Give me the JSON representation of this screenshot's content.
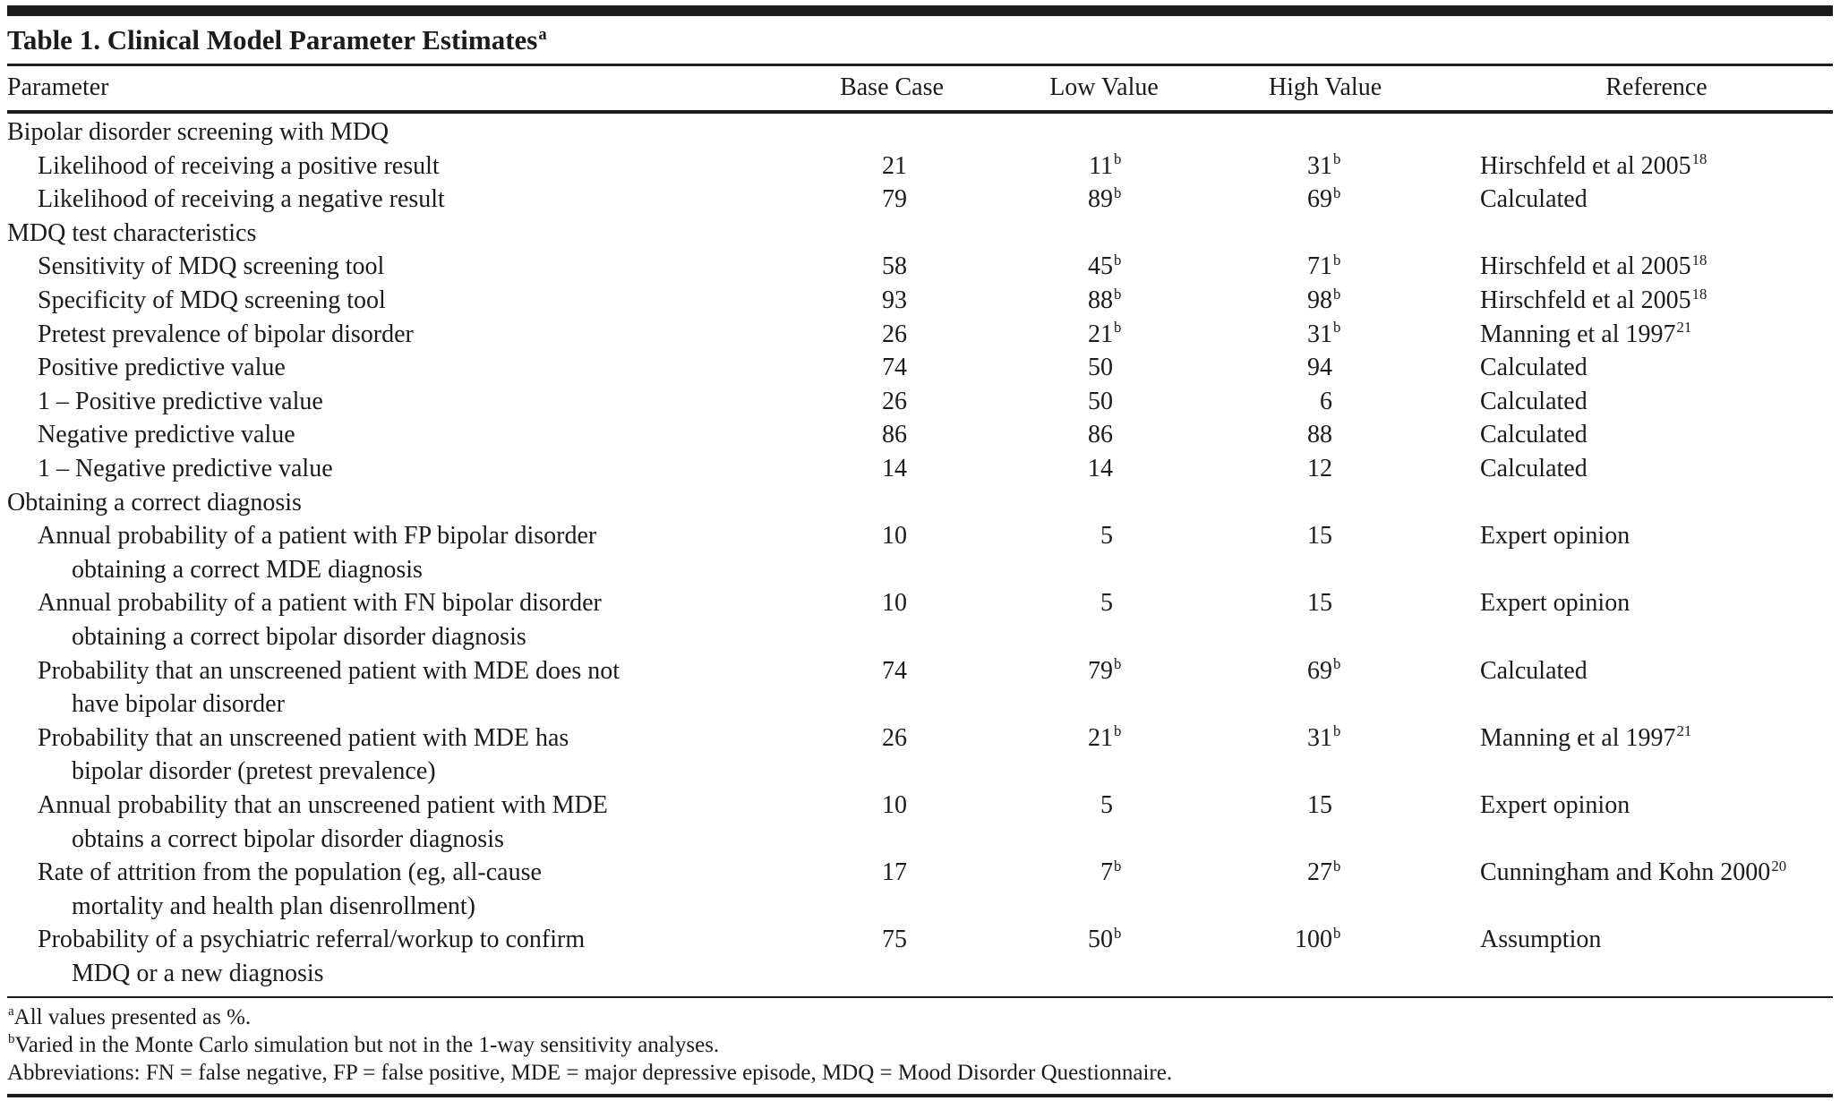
{
  "table": {
    "title": "Table 1. Clinical Model Parameter Estimates",
    "title_superscript": "a",
    "columns": {
      "parameter": "Parameter",
      "base_case": "Base Case",
      "low_value": "Low Value",
      "high_value": "High Value",
      "reference": "Reference"
    },
    "sections": [
      {
        "label": "Bipolar disorder screening with MDQ",
        "rows": [
          {
            "parameter_line1": "Likelihood of receiving a positive result",
            "parameter_line2": "",
            "base_case": "21",
            "low_value": "11",
            "low_sup": "b",
            "high_value": "31",
            "high_sup": "b",
            "reference": "Hirschfeld et al 2005",
            "reference_sup": "18"
          },
          {
            "parameter_line1": "Likelihood of receiving a negative result",
            "parameter_line2": "",
            "base_case": "79",
            "low_value": "89",
            "low_sup": "b",
            "high_value": "69",
            "high_sup": "b",
            "reference": "Calculated",
            "reference_sup": ""
          }
        ]
      },
      {
        "label": "MDQ test characteristics",
        "rows": [
          {
            "parameter_line1": "Sensitivity of MDQ screening tool",
            "parameter_line2": "",
            "base_case": "58",
            "low_value": "45",
            "low_sup": "b",
            "high_value": "71",
            "high_sup": "b",
            "reference": "Hirschfeld et al 2005",
            "reference_sup": "18"
          },
          {
            "parameter_line1": "Specificity of MDQ screening tool",
            "parameter_line2": "",
            "base_case": "93",
            "low_value": "88",
            "low_sup": "b",
            "high_value": "98",
            "high_sup": "b",
            "reference": "Hirschfeld et al 2005",
            "reference_sup": "18"
          },
          {
            "parameter_line1": "Pretest prevalence of bipolar disorder",
            "parameter_line2": "",
            "base_case": "26",
            "low_value": "21",
            "low_sup": "b",
            "high_value": "31",
            "high_sup": "b",
            "reference": "Manning et al 1997",
            "reference_sup": "21"
          },
          {
            "parameter_line1": "Positive predictive value",
            "parameter_line2": "",
            "base_case": "74",
            "low_value": "50",
            "low_sup": "",
            "high_value": "94",
            "high_sup": "",
            "reference": "Calculated",
            "reference_sup": ""
          },
          {
            "parameter_line1": "1 – Positive predictive value",
            "parameter_line2": "",
            "base_case": "26",
            "low_value": "50",
            "low_sup": "",
            "high_value": "6",
            "high_sup": "",
            "reference": "Calculated",
            "reference_sup": ""
          },
          {
            "parameter_line1": "Negative predictive value",
            "parameter_line2": "",
            "base_case": "86",
            "low_value": "86",
            "low_sup": "",
            "high_value": "88",
            "high_sup": "",
            "reference": "Calculated",
            "reference_sup": ""
          },
          {
            "parameter_line1": "1 – Negative predictive value",
            "parameter_line2": "",
            "base_case": "14",
            "low_value": "14",
            "low_sup": "",
            "high_value": "12",
            "high_sup": "",
            "reference": "Calculated",
            "reference_sup": ""
          }
        ]
      },
      {
        "label": "Obtaining a correct diagnosis",
        "rows": [
          {
            "parameter_line1": "Annual probability of a patient with FP bipolar disorder",
            "parameter_line2": "obtaining a correct MDE diagnosis",
            "base_case": "10",
            "low_value": "5",
            "low_sup": "",
            "high_value": "15",
            "high_sup": "",
            "reference": "Expert opinion",
            "reference_sup": ""
          },
          {
            "parameter_line1": "Annual probability of a patient with FN bipolar disorder",
            "parameter_line2": "obtaining a correct bipolar disorder diagnosis",
            "base_case": "10",
            "low_value": "5",
            "low_sup": "",
            "high_value": "15",
            "high_sup": "",
            "reference": "Expert opinion",
            "reference_sup": ""
          },
          {
            "parameter_line1": "Probability that an unscreened patient with MDE does not",
            "parameter_line2": "have bipolar disorder",
            "base_case": "74",
            "low_value": "79",
            "low_sup": "b",
            "high_value": "69",
            "high_sup": "b",
            "reference": "Calculated",
            "reference_sup": ""
          },
          {
            "parameter_line1": "Probability that an unscreened patient with MDE has",
            "parameter_line2": "bipolar disorder (pretest prevalence)",
            "base_case": "26",
            "low_value": "21",
            "low_sup": "b",
            "high_value": "31",
            "high_sup": "b",
            "reference": "Manning et al 1997",
            "reference_sup": "21"
          },
          {
            "parameter_line1": "Annual probability that an unscreened patient with MDE",
            "parameter_line2": "obtains a correct bipolar disorder diagnosis",
            "base_case": "10",
            "low_value": "5",
            "low_sup": "",
            "high_value": "15",
            "high_sup": "",
            "reference": "Expert opinion",
            "reference_sup": ""
          },
          {
            "parameter_line1": "Rate of attrition from the population (eg, all-cause",
            "parameter_line2": "mortality and health plan disenrollment)",
            "base_case": "17",
            "low_value": "7",
            "low_sup": "b",
            "high_value": "27",
            "high_sup": "b",
            "reference": "Cunningham and Kohn 2000",
            "reference_sup": "20"
          },
          {
            "parameter_line1": "Probability of a psychiatric referral/workup to confirm",
            "parameter_line2": "MDQ or a new diagnosis",
            "base_case": "75",
            "low_value": "50",
            "low_sup": "b",
            "high_value": "100",
            "high_sup": "b",
            "reference": "Assumption",
            "reference_sup": ""
          }
        ]
      }
    ],
    "footnotes": [
      {
        "marker": "a",
        "text": "All values presented as %."
      },
      {
        "marker": "b",
        "text": "Varied in the Monte Carlo simulation but not in the 1-way sensitivity analyses."
      },
      {
        "marker": "",
        "text": "Abbreviations: FN = false negative, FP = false positive, MDE = major depressive episode, MDQ = Mood Disorder Questionnaire."
      }
    ]
  }
}
